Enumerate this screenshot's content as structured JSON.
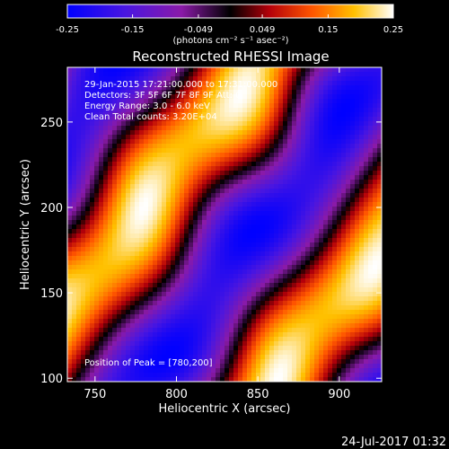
{
  "chart_data": {
    "type": "heatmap",
    "title": "Reconstructed RHESSI Image",
    "xlabel": "Heliocentric X (arcsec)",
    "ylabel": "Heliocentric Y (arcsec)",
    "xlim": [
      733,
      926
    ],
    "ylim": [
      98,
      282
    ],
    "x_ticks": [
      750,
      800,
      850,
      900
    ],
    "y_ticks": [
      100,
      150,
      200,
      250
    ],
    "colorbar": {
      "range": [
        -0.25,
        0.25
      ],
      "ticks": [
        "-0.25",
        "-0.15",
        "-0.049",
        "0.049",
        "0.15",
        "0.25"
      ],
      "unit_label": "(photons cm⁻² s⁻¹ asec⁻²)",
      "colormap": [
        "#0000ff",
        "#4a16e0",
        "#8a1aa8",
        "#000000",
        "#b4000a",
        "#ff5500",
        "#ffc000",
        "#ffffff"
      ]
    },
    "annotations": [
      "29-Jan-2015 17:21:00.000 to 17:31:00.000",
      "Detectors: 3F 5F 6F 7F 8F 9F  Att: 0",
      "Energy Range: 3.0 - 6.0 keV",
      "Clean     Total counts: 3.20E+04",
      "Position of Peak = [780,200]"
    ],
    "peak": {
      "x": 780,
      "y": 200
    },
    "value_range": [
      -0.25,
      0.25
    ]
  },
  "timestamp": "24-Jul-2017 01:32"
}
